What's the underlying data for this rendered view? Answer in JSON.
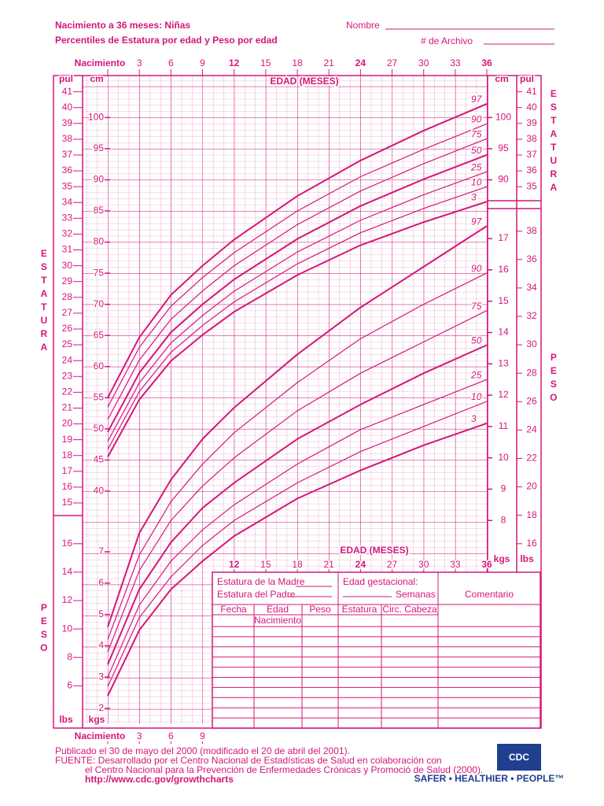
{
  "header": {
    "title": "Nacimiento a 36 meses:  Niñas",
    "subtitle": "Percentiles de Estatura por edad y Peso por edad",
    "name_label": "Nombre",
    "file_label": "# de Archivo"
  },
  "chart_data": [
    {
      "type": "line",
      "title": "ESTATURA",
      "x_label": "EDAD (MESES)",
      "y_label": "cm",
      "y2_label": "pul",
      "color": "#d4167b",
      "x": [
        0,
        3,
        6,
        9,
        12,
        18,
        24,
        30,
        36
      ],
      "xlim": [
        0,
        36
      ],
      "xticks": [
        {
          "value": 0,
          "label": "Nacimiento"
        },
        3,
        6,
        9,
        12,
        15,
        18,
        21,
        24,
        27,
        30,
        33,
        36
      ],
      "ylim": [
        38.1,
        104.14
      ],
      "yticks": [
        40,
        45,
        50,
        55,
        60,
        65,
        70,
        75,
        80,
        85,
        90,
        95,
        100
      ],
      "y2lim": [
        15,
        41
      ],
      "y2ticks": [
        15,
        16,
        17,
        18,
        19,
        20,
        21,
        22,
        23,
        24,
        25,
        26,
        27,
        28,
        29,
        30,
        31,
        32,
        33,
        34,
        35,
        36,
        37,
        38,
        39,
        40,
        41
      ],
      "series": [
        {
          "name": "97",
          "values": [
            55.0,
            64.7,
            71.5,
            76.2,
            80.4,
            87.4,
            93.1,
            97.9,
            102.2
          ]
        },
        {
          "name": "90",
          "values": [
            53.5,
            63.1,
            69.7,
            74.3,
            78.3,
            85.0,
            90.5,
            94.9,
            99.0
          ]
        },
        {
          "name": "75",
          "values": [
            51.5,
            61.05,
            67.6,
            72.15,
            76.2,
            82.8,
            88.2,
            92.6,
            96.6
          ]
        },
        {
          "name": "50",
          "values": [
            49.5,
            59.0,
            65.5,
            70.0,
            74.0,
            80.5,
            85.8,
            90.1,
            94.0
          ]
        },
        {
          "name": "25",
          "values": [
            48.0,
            57.4,
            63.8,
            68.2,
            72.1,
            78.4,
            83.5,
            87.6,
            91.3
          ]
        },
        {
          "name": "10",
          "values": [
            46.7,
            56.0,
            62.3,
            66.6,
            70.4,
            76.5,
            81.5,
            85.4,
            88.9
          ]
        },
        {
          "name": "3",
          "values": [
            45.5,
            54.7,
            60.9,
            65.1,
            68.8,
            74.7,
            79.5,
            83.2,
            86.5
          ]
        }
      ]
    },
    {
      "type": "line",
      "title": "PESO",
      "x_label": "EDAD (MESES)",
      "y_label": "kgs",
      "y2_label": "lbs",
      "color": "#d4167b",
      "x": [
        0,
        3,
        6,
        9,
        12,
        18,
        24,
        30,
        36
      ],
      "xlim": [
        0,
        36
      ],
      "xticks": [
        {
          "value": 0,
          "label": "Nacimiento"
        },
        3,
        6,
        9,
        12,
        15,
        18,
        21,
        24,
        27,
        30,
        33,
        36
      ],
      "ylim": [
        1.8144,
        17.69
      ],
      "yticks": [
        2,
        3,
        4,
        5,
        6,
        7,
        8,
        9,
        10,
        11,
        12,
        13,
        14,
        15,
        16,
        17
      ],
      "y2lim": [
        4,
        39
      ],
      "y2ticks": [
        6,
        8,
        10,
        12,
        14,
        16,
        18,
        20,
        22,
        24,
        26,
        28,
        30,
        32,
        34,
        36,
        38
      ],
      "series": [
        {
          "name": "97",
          "values": [
            4.6,
            7.6,
            9.3,
            10.6,
            11.6,
            13.3,
            14.8,
            16.1,
            17.4
          ]
        },
        {
          "name": "90",
          "values": [
            4.2,
            6.9,
            8.6,
            9.8,
            10.8,
            12.4,
            13.8,
            14.9,
            15.9
          ]
        },
        {
          "name": "75",
          "values": [
            3.8,
            6.4,
            8.0,
            9.1,
            10.0,
            11.5,
            12.7,
            13.7,
            14.7
          ]
        },
        {
          "name": "50",
          "values": [
            3.4,
            5.8,
            7.3,
            8.4,
            9.2,
            10.6,
            11.7,
            12.7,
            13.6
          ]
        },
        {
          "name": "25",
          "values": [
            3.0,
            5.3,
            6.7,
            7.7,
            8.5,
            9.8,
            10.9,
            11.7,
            12.5
          ]
        },
        {
          "name": "10",
          "values": [
            2.7,
            4.9,
            6.2,
            7.2,
            8.0,
            9.2,
            10.2,
            11.0,
            11.8
          ]
        },
        {
          "name": "3",
          "values": [
            2.4,
            4.5,
            5.8,
            6.7,
            7.5,
            8.7,
            9.6,
            10.4,
            11.1
          ]
        }
      ]
    }
  ],
  "form": {
    "mother": "Estatura de la Madre",
    "father": "Estatura del Padre",
    "gestational": "Edad gestacional:",
    "weeks": "Semanas",
    "comment": "Comentario",
    "columns": [
      "Fecha",
      "Edad",
      "Peso",
      "Estatura",
      "Circ. Cabeza"
    ],
    "birth": "Nacimiento"
  },
  "footer": {
    "published": "Publicado el 30 de mayo del 2000 (modificado el 20 de abril del 2001).",
    "source": "FUENTE: Desarrollado por el Centro Nacional de Estadísticas de Salud en colaboración con",
    "source2": "el Centro Nacional para la Prevención de Enfermedades Crónicas y Promoció de Salud (2000).",
    "url": "http://www.cdc.gov/growthcharts",
    "logo": "CDC",
    "tagline": "SAFER • HEALTHIER • PEOPLE™"
  }
}
